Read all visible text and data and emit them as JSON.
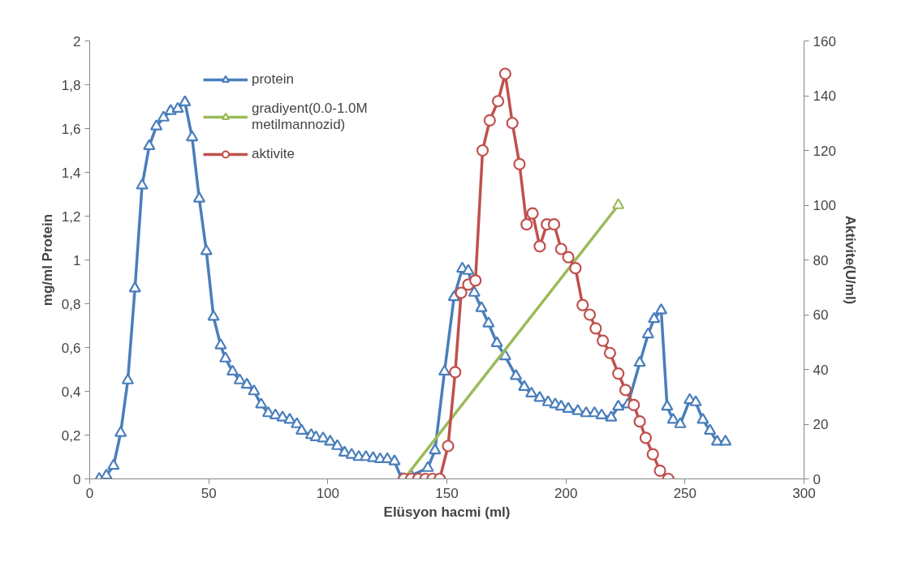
{
  "chart_data": {
    "type": "line",
    "xlabel": "Elüsyon hacmi (ml)",
    "ylabel": "mg/ml Protein",
    "y2label": "Aktivite(U/ml)",
    "xlim": [
      0,
      300
    ],
    "xticks": [
      0,
      50,
      100,
      150,
      200,
      250,
      300
    ],
    "ylim": [
      0,
      2
    ],
    "yticks": [
      0,
      {
        "value": 0.2,
        "label": "0,2"
      },
      {
        "value": 0.4,
        "label": "0,4"
      },
      {
        "value": 0.6,
        "label": "0,6"
      },
      {
        "value": 0.8,
        "label": "0,8"
      },
      1,
      {
        "value": 1.2,
        "label": "1,2"
      },
      {
        "value": 1.4,
        "label": "1,4"
      },
      {
        "value": 1.6,
        "label": "1,6"
      },
      {
        "value": 1.8,
        "label": "1,8"
      },
      2
    ],
    "y2lim": [
      0,
      160
    ],
    "y2ticks": [
      0,
      20,
      40,
      60,
      80,
      100,
      120,
      140,
      160
    ],
    "grid": false,
    "legend": "top left",
    "line_style": "solid",
    "series": [
      {
        "name": "protein",
        "color": "#4a7ebb",
        "marker": "triangle",
        "x": [
          4,
          7,
          10,
          13,
          16,
          19,
          22,
          25,
          28,
          31,
          34,
          37,
          40,
          43,
          46,
          49,
          52,
          55,
          57,
          60,
          63,
          66,
          69,
          72,
          75,
          78,
          81,
          84,
          87,
          89,
          93,
          95,
          98,
          101,
          104,
          107,
          110,
          113,
          116,
          119,
          122,
          125,
          128,
          131,
          135,
          142,
          145,
          149,
          153,
          156.5,
          159,
          161.5,
          164.5,
          167.5,
          171,
          174.5,
          179,
          182.5,
          185.5,
          189,
          192.5,
          195.5,
          198,
          201,
          205,
          208.5,
          212,
          215,
          219,
          222,
          226,
          231,
          234.5,
          237,
          240,
          242.5,
          245,
          248,
          252,
          254.5,
          257.5,
          260.5,
          263.5,
          267
        ],
        "values": [
          0,
          0.015,
          0.06,
          0.21,
          0.45,
          0.87,
          1.34,
          1.52,
          1.61,
          1.65,
          1.68,
          1.69,
          1.72,
          1.56,
          1.28,
          1.04,
          0.74,
          0.61,
          0.55,
          0.49,
          0.45,
          0.43,
          0.4,
          0.34,
          0.3,
          0.29,
          0.28,
          0.27,
          0.25,
          0.22,
          0.2,
          0.19,
          0.185,
          0.17,
          0.15,
          0.12,
          0.11,
          0.1,
          0.1,
          0.095,
          0.09,
          0.09,
          0.08,
          0,
          0.015,
          0.05,
          0.13,
          0.49,
          0.83,
          0.96,
          0.95,
          0.85,
          0.78,
          0.71,
          0.62,
          0.56,
          0.47,
          0.42,
          0.39,
          0.37,
          0.35,
          0.34,
          0.33,
          0.32,
          0.31,
          0.3,
          0.3,
          0.29,
          0.28,
          0.33,
          0.34,
          0.53,
          0.66,
          0.73,
          0.77,
          0.33,
          0.27,
          0.25,
          0.36,
          0.35,
          0.27,
          0.22,
          0.17,
          0.17
        ]
      },
      {
        "name": "gradiyent(0.0-1.0M metilmannozid)",
        "color": "#9bbb59",
        "marker": "triangle",
        "axis": "y2",
        "x": [
          132,
          222
        ],
        "values": [
          0,
          100
        ]
      },
      {
        "name": "aktivite",
        "color": "#c0504d",
        "marker": "circle",
        "axis": "y2",
        "x": [
          132,
          135,
          138,
          141,
          144,
          147,
          150.5,
          153.5,
          156,
          159,
          162,
          165,
          168,
          171.5,
          174.5,
          177.5,
          180.5,
          183.5,
          186,
          189,
          192,
          195,
          198,
          201,
          204,
          207,
          210,
          212.5,
          215.5,
          218.5,
          222,
          225,
          228.5,
          231,
          233.5,
          236.5,
          239.5,
          243
        ],
        "values": [
          0,
          0,
          0,
          0,
          0,
          0,
          12,
          39,
          68,
          71,
          72.5,
          120,
          131,
          138,
          148,
          130,
          115,
          93,
          97,
          85,
          93,
          93,
          84,
          81,
          77,
          63.5,
          60,
          55,
          50.5,
          46,
          38.5,
          32.5,
          27,
          21,
          15,
          9,
          3,
          0
        ]
      }
    ]
  }
}
